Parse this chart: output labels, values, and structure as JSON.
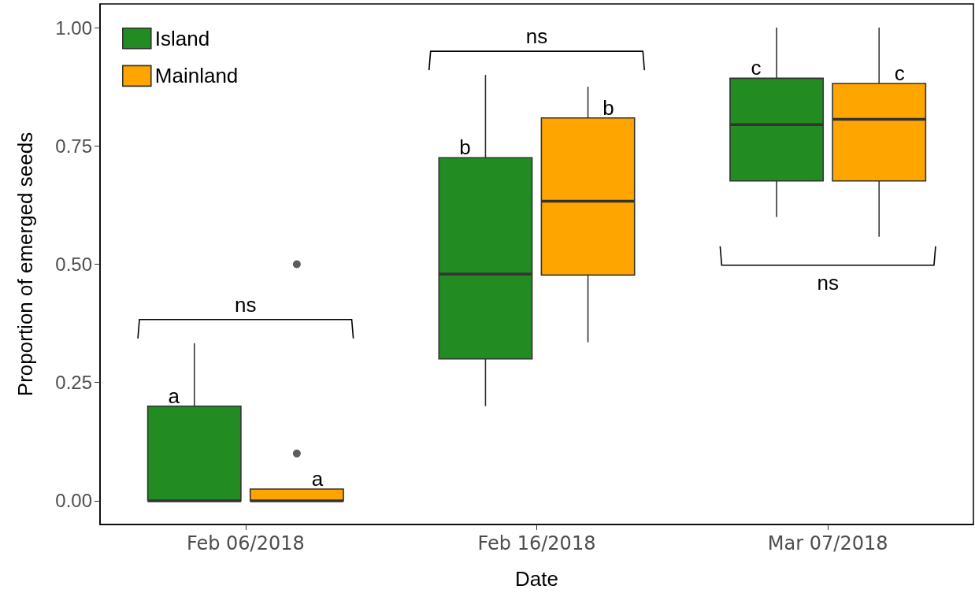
{
  "chart_data": {
    "type": "box",
    "xlabel": "Date",
    "ylabel": "Proportion of emerged seeds",
    "categories": [
      "Feb 06/2018",
      "Feb 16/2018",
      "Mar 07/2018"
    ],
    "series": [
      {
        "name": "Island",
        "color": "#228b22",
        "boxes": [
          {
            "low": 0,
            "q1": 0,
            "median": 0,
            "q3": 0.2,
            "high": 0.333
          },
          {
            "low": 0.2,
            "q1": 0.3,
            "median": 0.479,
            "q3": 0.725,
            "high": 0.9
          },
          {
            "low": 0.6,
            "q1": 0.676,
            "median": 0.795,
            "q3": 0.893,
            "high": 1.0
          }
        ]
      },
      {
        "name": "Mainland",
        "color": "#ffa500",
        "boxes": [
          {
            "low": 0,
            "q1": 0,
            "median": 0,
            "q3": 0.025,
            "high": 0.025,
            "outliers": [
              0.1,
              0.5
            ]
          },
          {
            "low": 0.335,
            "q1": 0.477,
            "median": 0.633,
            "q3": 0.809,
            "high": 0.875
          },
          {
            "low": 0.558,
            "q1": 0.676,
            "median": 0.806,
            "q3": 0.882,
            "high": 1.0
          }
        ]
      }
    ],
    "ylim": [
      -0.05,
      1.05
    ],
    "yticks": [
      {
        "value": 0,
        "label": "0.00"
      },
      {
        "value": 0.25,
        "label": "0.25"
      },
      {
        "value": 0.5,
        "label": "0.50"
      },
      {
        "value": 0.75,
        "label": "0.75"
      },
      {
        "value": 1,
        "label": "1.00"
      }
    ],
    "legend": "top left",
    "annotations": [
      "a",
      "a",
      "ns",
      "b",
      "b",
      "ns",
      "c",
      "c",
      "ns"
    ]
  }
}
